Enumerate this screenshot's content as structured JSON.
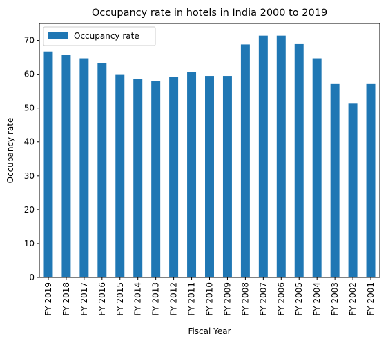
{
  "chart_data": {
    "type": "bar",
    "title": "Occupancy rate in hotels in India 2000 to 2019",
    "xlabel": "Fiscal Year",
    "ylabel": "Occupancy rate",
    "categories": [
      "FY 2019",
      "FY 2018",
      "FY 2017",
      "FY 2016",
      "FY 2015",
      "FY 2014",
      "FY 2013",
      "FY 2012",
      "FY 2011",
      "FY 2010",
      "FY 2009",
      "FY 2008",
      "FY 2007",
      "FY 2006",
      "FY 2005",
      "FY 2004",
      "FY 2003",
      "FY 2002",
      "FY 2001"
    ],
    "series": [
      {
        "name": "Occupancy rate",
        "values": [
          66.7,
          65.8,
          64.7,
          63.3,
          60.0,
          58.5,
          57.9,
          59.3,
          60.6,
          59.5,
          59.5,
          68.8,
          71.4,
          71.4,
          68.9,
          64.7,
          57.3,
          51.5,
          57.3
        ],
        "color": "#1f77b4"
      }
    ],
    "ylim": [
      0,
      75
    ],
    "yticks": [
      0,
      10,
      20,
      30,
      40,
      50,
      60,
      70
    ],
    "grid": false,
    "legend_position": "top-left"
  }
}
